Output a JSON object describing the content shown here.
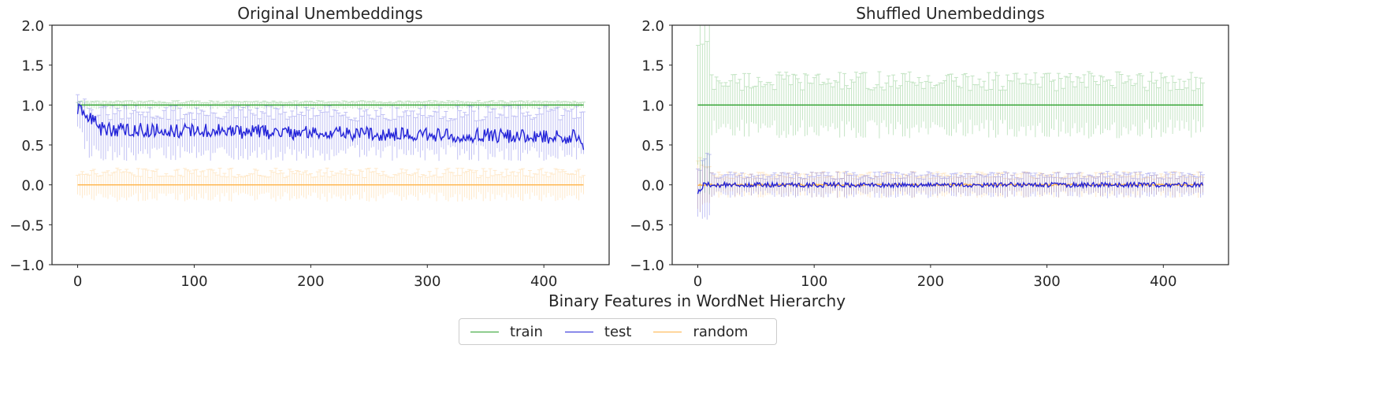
{
  "figure": {
    "shared_xlabel": "Binary Features in WordNet Hierarchy",
    "legend": [
      {
        "label": "train",
        "color": "#2ca02c"
      },
      {
        "label": "test",
        "color": "#2323d8"
      },
      {
        "label": "random",
        "color": "#ffb347"
      }
    ]
  },
  "chart_data": [
    {
      "type": "line",
      "title": "Original Unembeddings",
      "xlabel": "",
      "ylabel": "",
      "xlim": [
        -22,
        456
      ],
      "ylim": [
        -1.0,
        2.0
      ],
      "xticks": [
        0,
        100,
        200,
        300,
        400
      ],
      "yticks": [
        -1.0,
        -0.5,
        0.0,
        0.5,
        1.0,
        1.5,
        2.0
      ],
      "ytick_labels": [
        "−1.0",
        "−0.5",
        "0.0",
        "0.5",
        "1.0",
        "1.5",
        "2.0"
      ],
      "n_points": 435,
      "grid": false,
      "series": [
        {
          "name": "train",
          "color": "#2ca02c",
          "mean": 1.0,
          "error": 0.04,
          "noise": 0.0
        },
        {
          "name": "test",
          "color": "#2323d8",
          "start": 0.93,
          "end": 0.45,
          "mean": 0.65,
          "noise": 0.09,
          "error": 0.25
        },
        {
          "name": "random",
          "color": "#ffb347",
          "mean": 0.0,
          "noise": 0.0,
          "error": 0.15
        }
      ]
    },
    {
      "type": "line",
      "title": "Shuffled Unembeddings",
      "xlabel": "",
      "ylabel": "",
      "xlim": [
        -22,
        456
      ],
      "ylim": [
        -1.0,
        2.0
      ],
      "xticks": [
        0,
        100,
        200,
        300,
        400
      ],
      "yticks": [
        -1.0,
        -0.5,
        0.0,
        0.5,
        1.0,
        1.5,
        2.0
      ],
      "ytick_labels": [
        "−1.0",
        "−0.5",
        "0.0",
        "0.5",
        "1.0",
        "1.5",
        "2.0"
      ],
      "n_points": 435,
      "grid": false,
      "series": [
        {
          "name": "train",
          "color": "#2ca02c",
          "mean": 1.0,
          "noise": 0.0,
          "error": 0.3
        },
        {
          "name": "test",
          "color": "#2323d8",
          "start": -0.1,
          "mean": 0.0,
          "noise": 0.03,
          "error": 0.12
        },
        {
          "name": "random",
          "color": "#ffb347",
          "mean": 0.0,
          "noise": 0.01,
          "error": 0.12
        }
      ]
    }
  ]
}
